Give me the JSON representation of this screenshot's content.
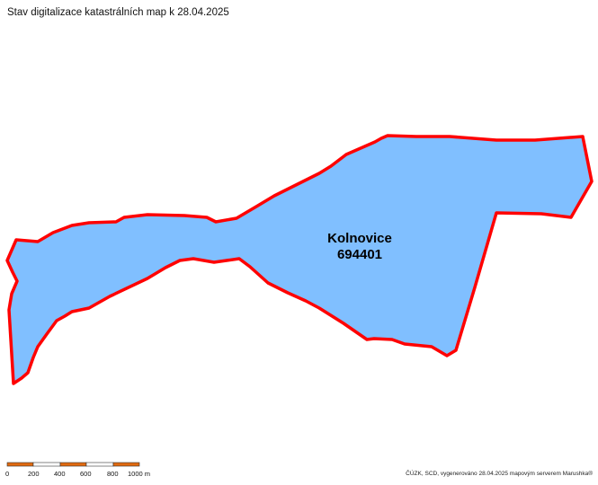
{
  "title": "Stav digitalizace katastrálních map k 28.04.2025",
  "parcel": {
    "name": "Kolnovice",
    "code": "694401",
    "fill_color": "#80bfff",
    "border_color": "#ff0000"
  },
  "scale": {
    "ticks": [
      "0",
      "200",
      "400",
      "600",
      "800",
      "1000 m"
    ],
    "colors": [
      "#e06a10",
      "#ffffff"
    ]
  },
  "credit": "ČÚZK, SCD, vygenerováno 28.04.2025 mapovým serverem Marushka®"
}
